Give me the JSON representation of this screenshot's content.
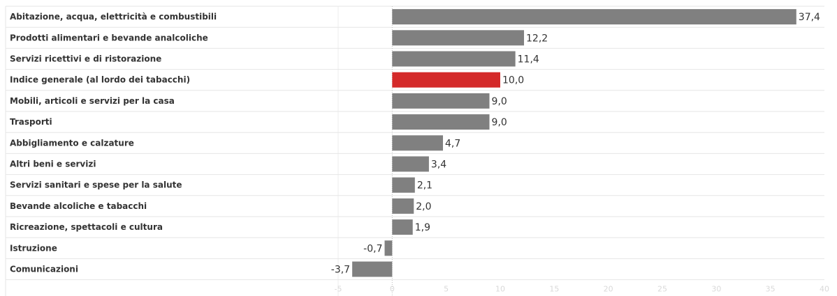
{
  "chart_data": {
    "type": "bar",
    "orientation": "horizontal",
    "title": "",
    "xlabel": "",
    "ylabel": "",
    "xlim": [
      -5,
      40
    ],
    "x_ticks": [
      -5,
      0,
      5,
      10,
      15,
      20,
      25,
      30,
      35,
      40
    ],
    "grid": true,
    "categories": [
      "Abitazione, acqua, elettricità e combustibili",
      "Prodotti alimentari e bevande analcoliche",
      "Servizi ricettivi e di ristorazione",
      "Indice generale (al lordo dei tabacchi)",
      "Mobili, articoli e servizi per la casa",
      "Trasporti",
      "Abbigliamento e calzature",
      "Altri beni e servizi",
      "Servizi sanitari e spese per la salute",
      "Bevande alcoliche e tabacchi",
      "Ricreazione, spettacoli e cultura",
      "Istruzione",
      "Comunicazioni"
    ],
    "values": [
      37.4,
      12.2,
      11.4,
      10.0,
      9.0,
      9.0,
      4.7,
      3.4,
      2.1,
      2.0,
      1.9,
      -0.7,
      -3.7
    ],
    "value_labels": [
      "37,4",
      "12,2",
      "11,4",
      "10,0",
      "9,0",
      "9,0",
      "4,7",
      "3,4",
      "2,1",
      "2,0",
      "1,9",
      "-0,7",
      "-3,7"
    ],
    "bar_color": "#808080",
    "highlight_index": 3,
    "highlight_color": "#d42a2a"
  }
}
